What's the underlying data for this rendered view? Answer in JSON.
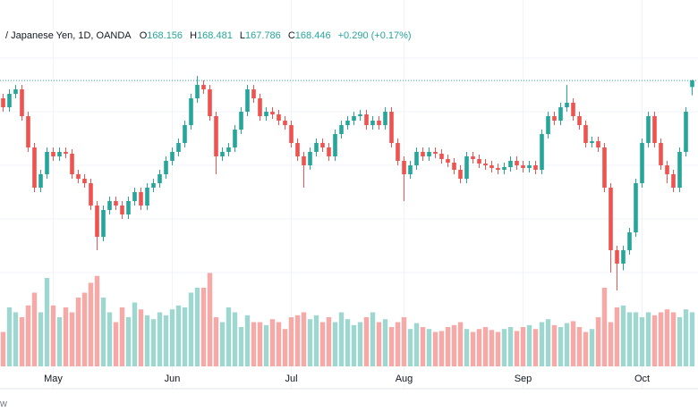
{
  "chart_data": {
    "type": "candlestick",
    "title": "/ Japanese Yen, 1D, OANDA",
    "ohlc_labels": [
      "O",
      "H",
      "L",
      "C"
    ],
    "change": "+0.290 (+0.17%)",
    "footer": "w",
    "up_color": "#26a69a",
    "down_color": "#ef5350",
    "volume_up_color": "#9ed6d0",
    "volume_down_color": "#f7a9a7",
    "ylim": [
      158.85,
      172.05
    ],
    "volume_ylim": [
      0,
      100
    ],
    "xticks": [
      {
        "value": 8,
        "label": "May"
      },
      {
        "value": 27,
        "label": "Jun"
      },
      {
        "value": 46,
        "label": "Jul"
      },
      {
        "value": 64,
        "label": "Aug"
      },
      {
        "value": 83,
        "label": "Sep"
      },
      {
        "value": 102,
        "label": "Oct"
      }
    ],
    "open": [
      167.65,
      167.25,
      167.85,
      168.05,
      166.85,
      165.45,
      163.65,
      164.25,
      165.25,
      165.05,
      165.25,
      165.17,
      164.25,
      164.05,
      163.85,
      162.85,
      161.45,
      162.65,
      163.05,
      162.85,
      162.45,
      163.05,
      163.45,
      162.85,
      163.65,
      163.85,
      164.25,
      164.85,
      165.25,
      165.65,
      166.45,
      167.65,
      168.25,
      168.05,
      166.85,
      165.05,
      165.25,
      165.45,
      166.25,
      167.05,
      168.05,
      167.65,
      166.85,
      167.05,
      166.93,
      166.65,
      166.45,
      165.65,
      165.05,
      164.65,
      165.25,
      165.65,
      165.45,
      165.05,
      166.05,
      166.45,
      166.65,
      166.85,
      166.93,
      166.45,
      166.65,
      166.45,
      167.05,
      165.65,
      164.85,
      164.25,
      164.65,
      165.25,
      165.05,
      165.25,
      165.17,
      164.93,
      164.77,
      164.45,
      164.05,
      165.05,
      164.93,
      164.73,
      164.65,
      164.53,
      164.45,
      164.57,
      164.85,
      164.65,
      164.53,
      164.65,
      164.45,
      166.05,
      166.85,
      166.65,
      167.25,
      167.45,
      166.85,
      166.45,
      165.65,
      165.73,
      165.45,
      163.65,
      160.85,
      160.25,
      160.85,
      161.65,
      163.85,
      165.65,
      166.85,
      165.65,
      164.65,
      164.25,
      163.65,
      165.25,
      168.156
    ],
    "high": [
      167.85,
      168.05,
      168.25,
      168.25,
      167.05,
      165.65,
      164.45,
      165.45,
      165.45,
      165.45,
      165.45,
      165.37,
      164.45,
      164.25,
      164.05,
      163.05,
      162.85,
      163.25,
      163.25,
      163.05,
      163.25,
      163.65,
      163.65,
      163.85,
      164.05,
      164.45,
      165.05,
      165.45,
      165.85,
      166.65,
      167.85,
      168.65,
      168.45,
      168.25,
      167.05,
      165.45,
      165.65,
      166.45,
      167.25,
      168.25,
      168.25,
      167.85,
      167.25,
      167.25,
      167.13,
      166.85,
      166.65,
      165.85,
      165.25,
      165.45,
      165.85,
      165.85,
      165.65,
      166.25,
      166.65,
      166.85,
      167.05,
      167.13,
      167.13,
      166.85,
      166.85,
      167.25,
      167.25,
      165.85,
      165.05,
      164.85,
      165.45,
      165.45,
      165.45,
      165.45,
      165.37,
      165.13,
      164.97,
      164.65,
      165.25,
      165.25,
      165.13,
      164.93,
      164.85,
      164.73,
      164.77,
      165.05,
      165.05,
      164.85,
      164.85,
      164.85,
      166.25,
      167.05,
      167.05,
      167.45,
      168.25,
      167.65,
      167.05,
      166.65,
      165.93,
      165.93,
      165.65,
      163.85,
      161.05,
      161.05,
      161.85,
      164.05,
      165.85,
      167.05,
      167.05,
      165.85,
      164.85,
      164.45,
      165.45,
      167.25,
      168.481
    ],
    "low": [
      167.05,
      167.05,
      167.65,
      166.65,
      165.25,
      163.45,
      163.45,
      164.05,
      164.85,
      164.85,
      164.97,
      164.05,
      163.85,
      163.65,
      162.65,
      160.85,
      161.25,
      162.45,
      162.65,
      162.25,
      162.25,
      162.85,
      162.65,
      162.65,
      163.45,
      163.65,
      164.05,
      164.65,
      165.05,
      165.45,
      166.25,
      167.45,
      167.85,
      166.65,
      164.25,
      164.85,
      165.05,
      165.25,
      166.05,
      166.85,
      167.45,
      166.65,
      166.65,
      166.73,
      166.45,
      166.25,
      165.45,
      164.85,
      163.65,
      164.45,
      165.05,
      165.25,
      164.85,
      164.85,
      165.85,
      166.25,
      166.45,
      166.65,
      166.25,
      166.25,
      166.25,
      166.25,
      165.45,
      164.65,
      163.05,
      164.05,
      164.45,
      164.85,
      164.85,
      164.97,
      164.73,
      164.57,
      164.25,
      163.85,
      163.85,
      164.73,
      164.53,
      164.45,
      164.33,
      164.25,
      164.25,
      164.37,
      164.45,
      164.33,
      164.33,
      164.25,
      164.25,
      165.85,
      166.45,
      166.45,
      167.05,
      166.65,
      166.25,
      165.45,
      165.45,
      165.25,
      163.45,
      159.85,
      159.05,
      159.95,
      160.65,
      161.45,
      163.65,
      165.45,
      165.45,
      164.45,
      163.85,
      163.45,
      163.45,
      165.05,
      167.786
    ],
    "close": [
      167.25,
      167.85,
      168.05,
      166.85,
      165.45,
      163.65,
      164.25,
      165.25,
      165.05,
      165.25,
      165.17,
      164.25,
      164.05,
      163.85,
      162.85,
      161.45,
      162.65,
      163.05,
      162.85,
      162.45,
      163.05,
      163.45,
      162.85,
      163.65,
      163.85,
      164.25,
      164.85,
      165.25,
      165.65,
      166.45,
      167.65,
      168.25,
      168.05,
      166.85,
      165.05,
      165.25,
      165.45,
      166.25,
      167.05,
      168.05,
      167.65,
      166.85,
      167.05,
      166.93,
      166.65,
      166.45,
      165.65,
      165.05,
      164.65,
      165.25,
      165.65,
      165.45,
      165.05,
      166.05,
      166.45,
      166.65,
      166.85,
      166.93,
      166.45,
      166.65,
      166.45,
      167.05,
      165.65,
      164.85,
      164.25,
      164.65,
      165.25,
      165.05,
      165.25,
      165.17,
      164.93,
      164.77,
      164.45,
      164.05,
      165.05,
      164.93,
      164.73,
      164.65,
      164.53,
      164.45,
      164.57,
      164.85,
      164.65,
      164.53,
      164.65,
      164.45,
      166.05,
      166.85,
      166.65,
      167.25,
      167.45,
      166.85,
      166.45,
      165.65,
      165.73,
      165.45,
      163.65,
      160.85,
      160.25,
      160.85,
      161.65,
      163.85,
      165.65,
      166.85,
      165.65,
      164.65,
      164.25,
      163.65,
      165.25,
      167.05,
      168.446
    ],
    "volume": [
      35,
      60,
      55,
      50,
      62,
      75,
      55,
      90,
      62,
      50,
      60,
      55,
      70,
      75,
      85,
      92,
      70,
      55,
      45,
      60,
      50,
      65,
      58,
      52,
      48,
      55,
      52,
      58,
      62,
      60,
      75,
      80,
      80,
      95,
      50,
      45,
      60,
      55,
      40,
      52,
      45,
      45,
      42,
      48,
      45,
      38,
      50,
      52,
      55,
      48,
      52,
      45,
      50,
      45,
      55,
      48,
      42,
      45,
      50,
      55,
      45,
      48,
      40,
      45,
      50,
      38,
      44,
      40,
      38,
      35,
      36,
      40,
      42,
      45,
      38,
      35,
      38,
      40,
      37,
      35,
      38,
      40,
      36,
      40,
      42,
      38,
      45,
      48,
      42,
      40,
      44,
      46,
      40,
      35,
      38,
      50,
      80,
      45,
      60,
      62,
      55,
      55,
      50,
      55,
      52,
      55,
      58,
      55,
      50,
      58,
      55
    ]
  }
}
